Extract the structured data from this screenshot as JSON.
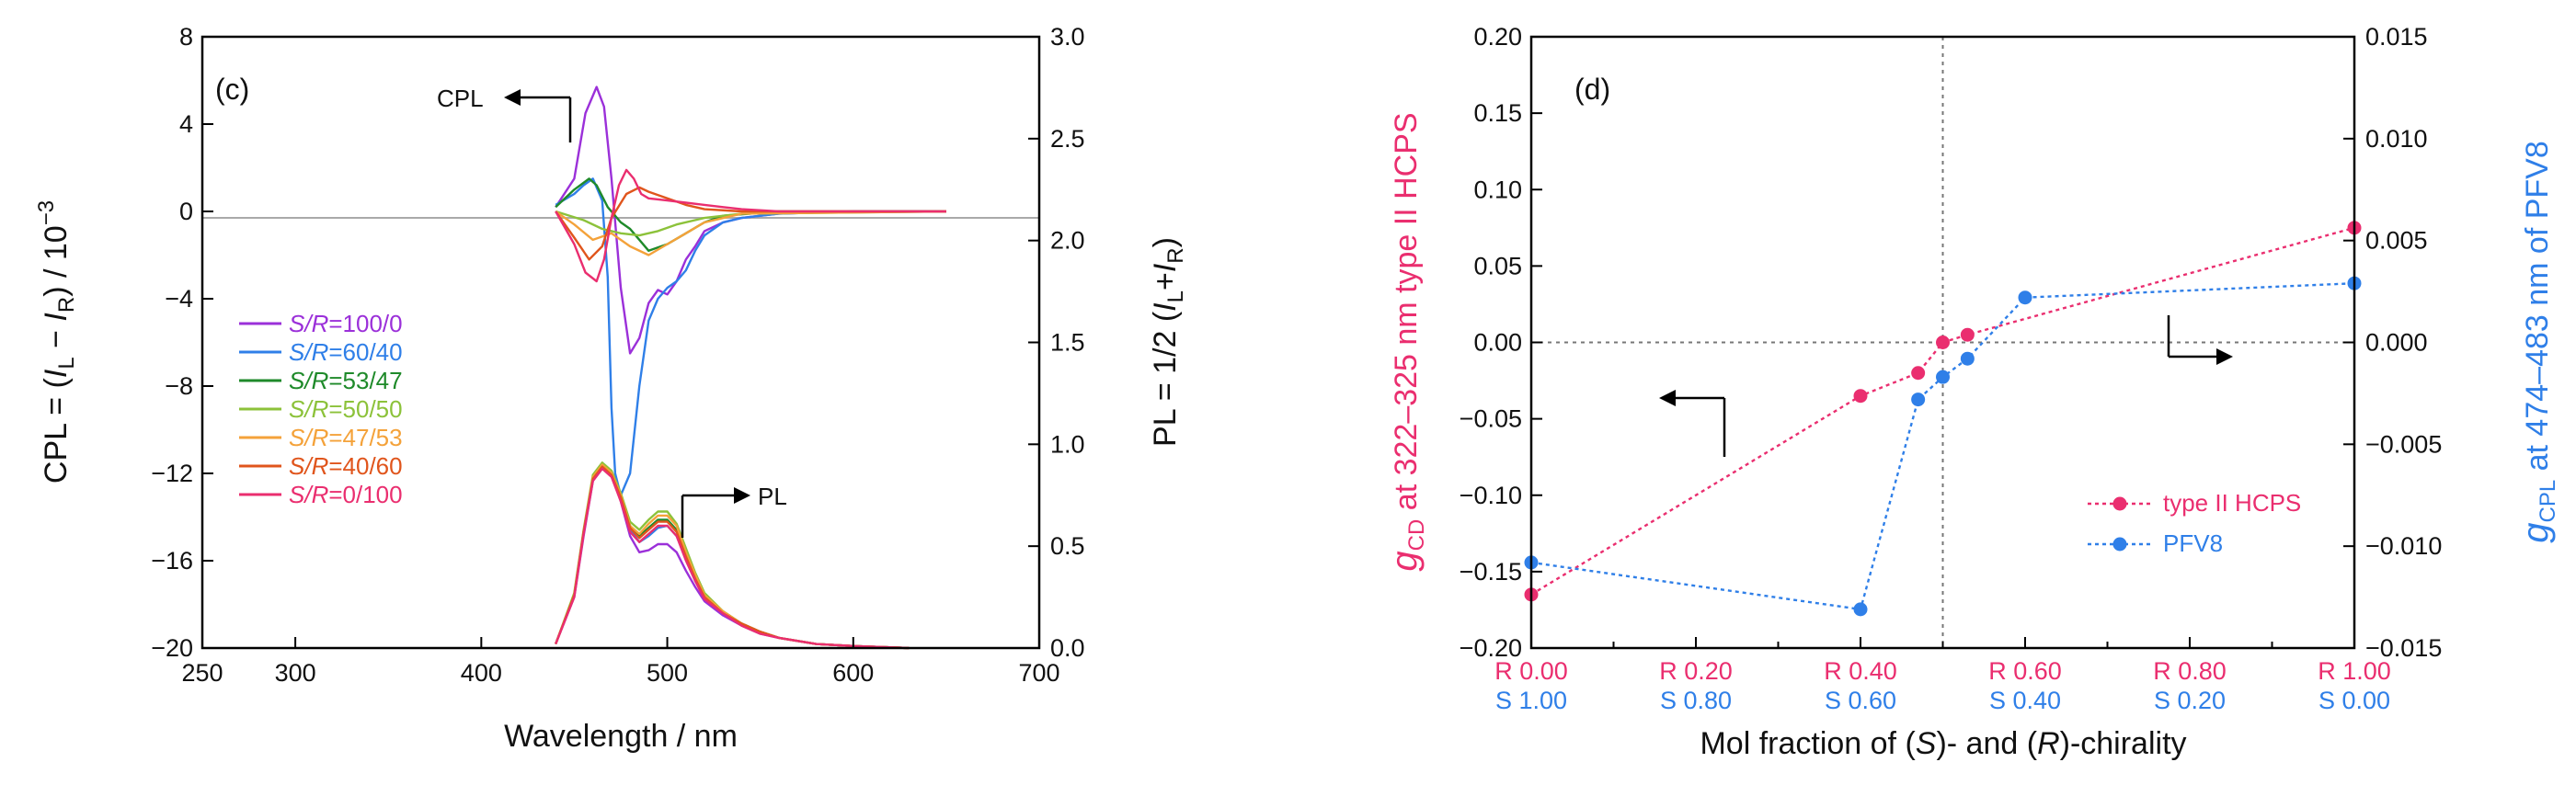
{
  "chart_data": [
    {
      "type": "line",
      "panel_label": "(c)",
      "xlabel": "Wavelength / nm",
      "xlim": [
        250,
        700
      ],
      "xticks": [
        "250",
        "300",
        "400",
        "500",
        "600",
        "700"
      ],
      "ylabel_left": "CPL = (I_L − I_R) / 10^−3",
      "ylim_left": [
        -20,
        8
      ],
      "yticks_left": [
        "8",
        "4",
        "0",
        "−4",
        "−8",
        "−12",
        "−16",
        "−20"
      ],
      "ylabel_right": "PL = 1/2 (I_L + I_R)",
      "ylim_right": [
        0,
        3.0
      ],
      "yticks_right": [
        "3.0",
        "2.5",
        "2.0",
        "1.5",
        "1.0",
        "0.5",
        "0.0"
      ],
      "annotations": [
        "CPL",
        "PL"
      ],
      "legend": [
        {
          "name": "S/R=100/0",
          "color": "#9b30d9"
        },
        {
          "name": "S/R=60/40",
          "color": "#2f7fe8"
        },
        {
          "name": "S/R=53/47",
          "color": "#1f8a2a"
        },
        {
          "name": "S/R=50/50",
          "color": "#8cc23a"
        },
        {
          "name": "S/R=47/53",
          "color": "#f4a23a"
        },
        {
          "name": "S/R=40/60",
          "color": "#e0551c"
        },
        {
          "name": "S/R=0/100",
          "color": "#ea2e6f"
        }
      ],
      "series": [
        {
          "name": "CPL S/R=100/0",
          "color": "#9b30d9",
          "x": [
            440,
            450,
            456,
            462,
            466,
            470,
            475,
            480,
            485,
            490,
            495,
            500,
            505,
            510,
            515,
            520,
            530,
            540,
            560,
            600,
            650
          ],
          "y": [
            0.2,
            1.5,
            4.5,
            5.7,
            4.8,
            1.5,
            -3.5,
            -6.5,
            -5.8,
            -4.2,
            -3.6,
            -3.8,
            -3.2,
            -2.2,
            -1.6,
            -0.9,
            -0.5,
            -0.3,
            -0.1,
            0,
            0
          ]
        },
        {
          "name": "CPL S/R=60/40",
          "color": "#2f7fe8",
          "x": [
            440,
            450,
            455,
            460,
            465,
            468,
            470,
            472,
            475,
            480,
            485,
            490,
            495,
            500,
            505,
            510,
            515,
            520,
            530,
            540,
            560,
            600,
            650
          ],
          "y": [
            0.3,
            0.8,
            1.2,
            1.5,
            0.5,
            -3,
            -9,
            -12,
            -13,
            -12,
            -8,
            -5,
            -4,
            -3.5,
            -3.2,
            -2.7,
            -1.8,
            -1.1,
            -0.5,
            -0.3,
            -0.1,
            0,
            0
          ]
        },
        {
          "name": "CPL S/R=53/47",
          "color": "#1f8a2a",
          "x": [
            440,
            450,
            458,
            462,
            468,
            475,
            480,
            490,
            500,
            510,
            520,
            530,
            560,
            650
          ],
          "y": [
            0.2,
            1.0,
            1.5,
            1.2,
            0.2,
            -0.5,
            -0.8,
            -1.8,
            -1.5,
            -1.0,
            -0.5,
            -0.2,
            0,
            0
          ]
        },
        {
          "name": "CPL S/R=50/50",
          "color": "#8cc23a",
          "x": [
            440,
            455,
            465,
            475,
            485,
            495,
            505,
            520,
            540,
            650
          ],
          "y": [
            0,
            -0.4,
            -0.8,
            -1.0,
            -1.1,
            -0.9,
            -0.6,
            -0.3,
            -0.1,
            0
          ]
        },
        {
          "name": "CPL S/R=47/53",
          "color": "#f4a23a",
          "x": [
            440,
            450,
            460,
            470,
            480,
            490,
            500,
            510,
            520,
            540,
            650
          ],
          "y": [
            0,
            -0.6,
            -1.3,
            -1.0,
            -1.6,
            -2.0,
            -1.5,
            -1.0,
            -0.5,
            -0.1,
            0
          ]
        },
        {
          "name": "CPL S/R=40/60",
          "color": "#e0551c",
          "x": [
            440,
            450,
            458,
            465,
            470,
            478,
            485,
            490,
            500,
            510,
            520,
            540,
            650
          ],
          "y": [
            0,
            -1.2,
            -2.2,
            -1.6,
            -0.3,
            0.8,
            1.1,
            0.9,
            0.6,
            0.3,
            0.1,
            0,
            0
          ]
        },
        {
          "name": "CPL S/R=0/100",
          "color": "#ea2e6f",
          "x": [
            440,
            450,
            456,
            462,
            466,
            470,
            474,
            478,
            482,
            486,
            490,
            500,
            510,
            520,
            530,
            540,
            560,
            600,
            650
          ],
          "y": [
            0,
            -1.5,
            -2.8,
            -3.2,
            -2.2,
            -0.3,
            1.2,
            1.9,
            1.5,
            0.8,
            0.6,
            0.5,
            0.4,
            0.3,
            0.2,
            0.1,
            0,
            0,
            0
          ]
        },
        {
          "name": "PL S/R=100/0",
          "color": "#9b30d9",
          "x": [
            440,
            450,
            455,
            460,
            465,
            470,
            475,
            480,
            485,
            490,
            495,
            500,
            505,
            510,
            515,
            520,
            530,
            540,
            550,
            560,
            580,
            600,
            630
          ],
          "y": [
            0.02,
            0.25,
            0.55,
            0.82,
            0.88,
            0.85,
            0.72,
            0.55,
            0.47,
            0.48,
            0.51,
            0.51,
            0.47,
            0.38,
            0.3,
            0.23,
            0.16,
            0.11,
            0.07,
            0.05,
            0.02,
            0.01,
            0
          ]
        },
        {
          "name": "PL S/R=60/40",
          "color": "#2f7fe8",
          "x": [
            440,
            450,
            455,
            460,
            465,
            470,
            475,
            480,
            485,
            490,
            495,
            500,
            505,
            510,
            515,
            520,
            530,
            540,
            550,
            560,
            580,
            600,
            630
          ],
          "y": [
            0.02,
            0.26,
            0.57,
            0.83,
            0.89,
            0.86,
            0.74,
            0.58,
            0.52,
            0.55,
            0.59,
            0.6,
            0.55,
            0.44,
            0.33,
            0.25,
            0.17,
            0.12,
            0.08,
            0.05,
            0.02,
            0.01,
            0
          ]
        },
        {
          "name": "PL S/R=53/47",
          "color": "#1f8a2a",
          "x": [
            440,
            450,
            455,
            460,
            465,
            470,
            475,
            480,
            485,
            490,
            495,
            500,
            505,
            510,
            515,
            520,
            530,
            540,
            550,
            560,
            580,
            600,
            630
          ],
          "y": [
            0.02,
            0.26,
            0.57,
            0.84,
            0.9,
            0.86,
            0.75,
            0.6,
            0.55,
            0.59,
            0.63,
            0.63,
            0.58,
            0.46,
            0.35,
            0.26,
            0.18,
            0.12,
            0.08,
            0.05,
            0.02,
            0.01,
            0
          ]
        },
        {
          "name": "PL S/R=50/50",
          "color": "#8cc23a",
          "x": [
            440,
            450,
            455,
            460,
            465,
            470,
            475,
            480,
            485,
            490,
            495,
            500,
            505,
            510,
            515,
            520,
            530,
            540,
            550,
            560,
            580,
            600,
            630
          ],
          "y": [
            0.02,
            0.27,
            0.58,
            0.85,
            0.91,
            0.87,
            0.76,
            0.62,
            0.58,
            0.63,
            0.67,
            0.67,
            0.61,
            0.49,
            0.37,
            0.27,
            0.18,
            0.12,
            0.08,
            0.05,
            0.02,
            0.01,
            0
          ]
        },
        {
          "name": "PL S/R=47/53",
          "color": "#f4a23a",
          "x": [
            440,
            450,
            455,
            460,
            465,
            470,
            475,
            480,
            485,
            490,
            495,
            500,
            505,
            510,
            515,
            520,
            530,
            540,
            550,
            560,
            580,
            600,
            630
          ],
          "y": [
            0.02,
            0.26,
            0.57,
            0.84,
            0.9,
            0.86,
            0.75,
            0.6,
            0.56,
            0.61,
            0.65,
            0.65,
            0.6,
            0.47,
            0.36,
            0.26,
            0.18,
            0.12,
            0.08,
            0.05,
            0.02,
            0.01,
            0
          ]
        },
        {
          "name": "PL S/R=40/60",
          "color": "#e0551c",
          "x": [
            440,
            450,
            455,
            460,
            465,
            470,
            475,
            480,
            485,
            490,
            495,
            500,
            505,
            510,
            515,
            520,
            530,
            540,
            550,
            560,
            580,
            600,
            630
          ],
          "y": [
            0.02,
            0.26,
            0.57,
            0.83,
            0.89,
            0.85,
            0.74,
            0.59,
            0.54,
            0.58,
            0.62,
            0.62,
            0.57,
            0.45,
            0.34,
            0.25,
            0.17,
            0.12,
            0.08,
            0.05,
            0.02,
            0.01,
            0
          ]
        },
        {
          "name": "PL S/R=0/100",
          "color": "#ea2e6f",
          "x": [
            440,
            450,
            455,
            460,
            465,
            470,
            475,
            480,
            485,
            490,
            495,
            500,
            505,
            510,
            515,
            520,
            530,
            540,
            550,
            560,
            580,
            600,
            630
          ],
          "y": [
            0.02,
            0.25,
            0.56,
            0.82,
            0.88,
            0.84,
            0.72,
            0.57,
            0.52,
            0.56,
            0.6,
            0.6,
            0.55,
            0.43,
            0.33,
            0.24,
            0.17,
            0.11,
            0.07,
            0.05,
            0.02,
            0.01,
            0
          ]
        }
      ]
    },
    {
      "type": "line",
      "panel_label": "(d)",
      "xlabel": "Mol fraction of (S)- and (R)-chirality",
      "xlim": [
        0,
        1
      ],
      "xticks": [
        {
          "value": 0.0,
          "r": "R 0.00",
          "s": "S 1.00"
        },
        {
          "value": 0.2,
          "r": "R 0.20",
          "s": "S 0.80"
        },
        {
          "value": 0.4,
          "r": "R 0.40",
          "s": "S 0.60"
        },
        {
          "value": 0.6,
          "r": "R 0.60",
          "s": "S 0.40"
        },
        {
          "value": 0.8,
          "r": "R 0.80",
          "s": "S 0.20"
        },
        {
          "value": 1.0,
          "r": "R 1.00",
          "s": "S 0.00"
        }
      ],
      "ylabel_left": "g_CD at 322–325 nm type II HCPS",
      "ylim_left": [
        -0.2,
        0.2
      ],
      "yticks_left": [
        "0.20",
        "0.15",
        "0.10",
        "0.05",
        "0.00",
        "−0.05",
        "−0.10",
        "−0.15",
        "−0.20"
      ],
      "ylabel_right": "g_CPL at 474–483 nm of PFV8",
      "ylim_right": [
        -0.015,
        0.015
      ],
      "yticks_right": [
        "0.015",
        "0.010",
        "0.005",
        "0.000",
        "−0.005",
        "−0.010",
        "−0.015"
      ],
      "reference_lines": {
        "x": 0.5,
        "y": 0
      },
      "legend": [
        {
          "name": "type II HCPS",
          "color": "#ea2e6f"
        },
        {
          "name": "PFV8",
          "color": "#2f7fe8"
        }
      ],
      "series": [
        {
          "name": "type II HCPS",
          "axis": "left",
          "color": "#ea2e6f",
          "x": [
            0.0,
            0.4,
            0.47,
            0.5,
            0.53,
            1.0
          ],
          "y": [
            -0.165,
            -0.035,
            -0.02,
            0.0,
            0.005,
            0.075
          ]
        },
        {
          "name": "PFV8",
          "axis": "right",
          "color": "#2f7fe8",
          "x": [
            0.0,
            0.4,
            0.47,
            0.5,
            0.53,
            0.6,
            1.0
          ],
          "y": [
            -0.0108,
            -0.0131,
            -0.0028,
            -0.0017,
            -0.0008,
            0.0022,
            0.0029
          ]
        }
      ]
    }
  ]
}
